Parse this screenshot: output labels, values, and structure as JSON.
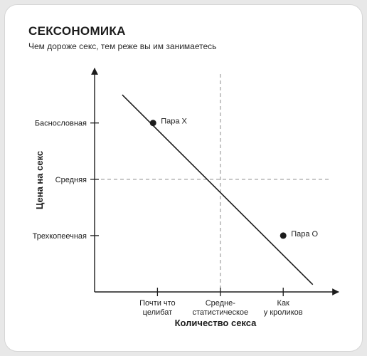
{
  "chart_data": {
    "type": "line",
    "title": "СЕКСОНОМИКА",
    "subtitle": "Чем дороже секс, тем реже вы им занимаетесь",
    "xlabel": "Количество секса",
    "ylabel": "Цена на секс",
    "x_ticks": [
      {
        "value": 1,
        "lines": [
          "Почти что",
          "целибат"
        ]
      },
      {
        "value": 2,
        "lines": [
          "Средне-",
          "статистическое"
        ]
      },
      {
        "value": 3,
        "lines": [
          "Как",
          "у кроликов"
        ]
      }
    ],
    "y_ticks": [
      {
        "value": 1,
        "label": "Трехкопеечная"
      },
      {
        "value": 2,
        "label": "Средняя"
      },
      {
        "value": 3,
        "label": "Баснословная"
      }
    ],
    "xlim": [
      0,
      3.88
    ],
    "ylim": [
      0,
      3.97
    ],
    "reference_lines": {
      "x": 2,
      "y": 2
    },
    "series": [
      {
        "values": [
          [
            0.44,
            3.5
          ],
          [
            3.47,
            0.13
          ]
        ]
      }
    ],
    "points": [
      {
        "label": "Пара X",
        "x": 0.93,
        "y": 3
      },
      {
        "label": "Пара О",
        "x": 3.0,
        "y": 1
      }
    ],
    "grid": false,
    "colors": {
      "line": "#1c1c1c",
      "reference": "#8a8a8a"
    }
  }
}
